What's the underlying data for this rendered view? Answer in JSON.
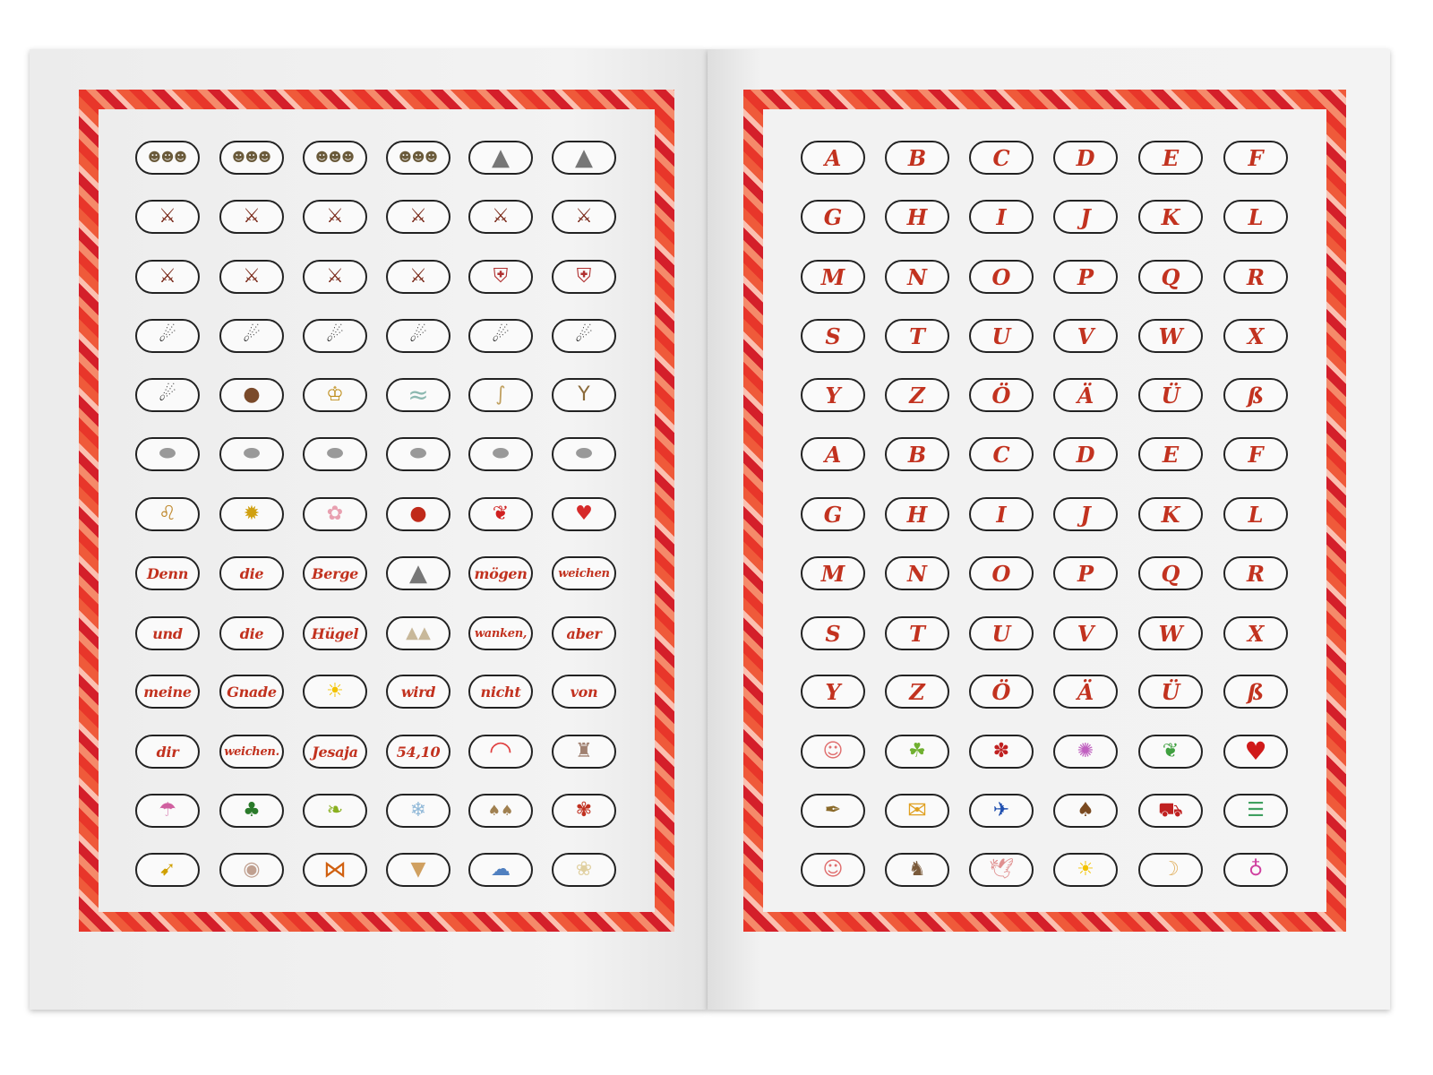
{
  "left_page": {
    "rows": [
      [
        {
          "icon": "crowd"
        },
        {
          "icon": "crowd"
        },
        {
          "icon": "crowd"
        },
        {
          "icon": "crowd"
        },
        {
          "icon": "mountain"
        },
        {
          "icon": "mountain"
        }
      ],
      [
        {
          "icon": "warrior"
        },
        {
          "icon": "warrior"
        },
        {
          "icon": "warrior"
        },
        {
          "icon": "warrior"
        },
        {
          "icon": "warrior"
        },
        {
          "icon": "warrior"
        }
      ],
      [
        {
          "icon": "warrior"
        },
        {
          "icon": "warrior"
        },
        {
          "icon": "warrior"
        },
        {
          "icon": "warrior"
        },
        {
          "icon": "armor"
        },
        {
          "icon": "armor"
        }
      ],
      [
        {
          "icon": "slinger"
        },
        {
          "icon": "slinger"
        },
        {
          "icon": "slinger"
        },
        {
          "icon": "slinger"
        },
        {
          "icon": "slinger"
        },
        {
          "icon": "slinger"
        }
      ],
      [
        {
          "icon": "slinger"
        },
        {
          "icon": "bear"
        },
        {
          "icon": "king"
        },
        {
          "icon": "water"
        },
        {
          "icon": "staff"
        },
        {
          "icon": "slingshot"
        }
      ],
      [
        {
          "icon": "stone"
        },
        {
          "icon": "stone"
        },
        {
          "icon": "stone"
        },
        {
          "icon": "stone"
        },
        {
          "icon": "stone"
        },
        {
          "icon": "stone"
        }
      ],
      [
        {
          "icon": "lion"
        },
        {
          "icon": "sunflower"
        },
        {
          "icon": "blossom-branch"
        },
        {
          "icon": "ladybug"
        },
        {
          "icon": "bow"
        },
        {
          "icon": "strawberry"
        }
      ],
      [
        {
          "text": "Denn"
        },
        {
          "text": "die"
        },
        {
          "text": "Berge"
        },
        {
          "icon": "mountain"
        },
        {
          "text": "mögen"
        },
        {
          "text": "weichen"
        }
      ],
      [
        {
          "text": "und"
        },
        {
          "text": "die"
        },
        {
          "text": "Hügel"
        },
        {
          "icon": "hills"
        },
        {
          "text": "wanken,"
        },
        {
          "text": "aber"
        }
      ],
      [
        {
          "text": "meine"
        },
        {
          "text": "Gnade"
        },
        {
          "icon": "sun"
        },
        {
          "text": "wird"
        },
        {
          "text": "nicht"
        },
        {
          "text": "von"
        }
      ],
      [
        {
          "text": "dir"
        },
        {
          "text": "weichen."
        },
        {
          "text": "Jesaja"
        },
        {
          "text": "54,10"
        },
        {
          "icon": "rainbow"
        },
        {
          "icon": "cake"
        }
      ],
      [
        {
          "icon": "umbrella"
        },
        {
          "icon": "tree"
        },
        {
          "icon": "leaf-branch"
        },
        {
          "icon": "snowflake"
        },
        {
          "icon": "mushrooms"
        },
        {
          "icon": "flowerpot"
        }
      ],
      [
        {
          "icon": "bird"
        },
        {
          "icon": "candy"
        },
        {
          "icon": "butterfly"
        },
        {
          "icon": "ice-cream"
        },
        {
          "icon": "rain-cloud"
        },
        {
          "icon": "daisy"
        }
      ]
    ]
  },
  "right_page": {
    "rows": [
      [
        {
          "letter": "A"
        },
        {
          "letter": "B"
        },
        {
          "letter": "C"
        },
        {
          "letter": "D"
        },
        {
          "letter": "E"
        },
        {
          "letter": "F"
        }
      ],
      [
        {
          "letter": "G"
        },
        {
          "letter": "H"
        },
        {
          "letter": "I"
        },
        {
          "letter": "J"
        },
        {
          "letter": "K"
        },
        {
          "letter": "L"
        }
      ],
      [
        {
          "letter": "M"
        },
        {
          "letter": "N"
        },
        {
          "letter": "O"
        },
        {
          "letter": "P"
        },
        {
          "letter": "Q"
        },
        {
          "letter": "R"
        }
      ],
      [
        {
          "letter": "S"
        },
        {
          "letter": "T"
        },
        {
          "letter": "U"
        },
        {
          "letter": "V"
        },
        {
          "letter": "W"
        },
        {
          "letter": "X"
        }
      ],
      [
        {
          "letter": "Y"
        },
        {
          "letter": "Z"
        },
        {
          "letter": "Ö"
        },
        {
          "letter": "Ä"
        },
        {
          "letter": "Ü"
        },
        {
          "letter": "ß"
        }
      ],
      [
        {
          "letter": "A"
        },
        {
          "letter": "B"
        },
        {
          "letter": "C"
        },
        {
          "letter": "D"
        },
        {
          "letter": "E"
        },
        {
          "letter": "F"
        }
      ],
      [
        {
          "letter": "G"
        },
        {
          "letter": "H"
        },
        {
          "letter": "I"
        },
        {
          "letter": "J"
        },
        {
          "letter": "K"
        },
        {
          "letter": "L"
        }
      ],
      [
        {
          "letter": "M"
        },
        {
          "letter": "N"
        },
        {
          "letter": "O"
        },
        {
          "letter": "P"
        },
        {
          "letter": "Q"
        },
        {
          "letter": "R"
        }
      ],
      [
        {
          "letter": "S"
        },
        {
          "letter": "T"
        },
        {
          "letter": "U"
        },
        {
          "letter": "V"
        },
        {
          "letter": "W"
        },
        {
          "letter": "X"
        }
      ],
      [
        {
          "letter": "Y"
        },
        {
          "letter": "Z"
        },
        {
          "letter": "Ö"
        },
        {
          "letter": "Ä"
        },
        {
          "letter": "Ü"
        },
        {
          "letter": "ß"
        }
      ],
      [
        {
          "icon": "smiley"
        },
        {
          "icon": "palm-tree"
        },
        {
          "icon": "flower"
        },
        {
          "icon": "aster"
        },
        {
          "icon": "ivy-leaf"
        },
        {
          "icon": "heart"
        }
      ],
      [
        {
          "icon": "pen"
        },
        {
          "icon": "envelope"
        },
        {
          "icon": "airplane"
        },
        {
          "icon": "mushroom"
        },
        {
          "icon": "car"
        },
        {
          "icon": "books"
        }
      ],
      [
        {
          "icon": "smiley"
        },
        {
          "icon": "cat"
        },
        {
          "icon": "dove"
        },
        {
          "icon": "sun"
        },
        {
          "icon": "moon"
        },
        {
          "icon": "balloon"
        }
      ]
    ]
  },
  "colors": {
    "text_red": "#c2321f",
    "frame_red": "#e8362a",
    "pill_outline": "#222222"
  }
}
